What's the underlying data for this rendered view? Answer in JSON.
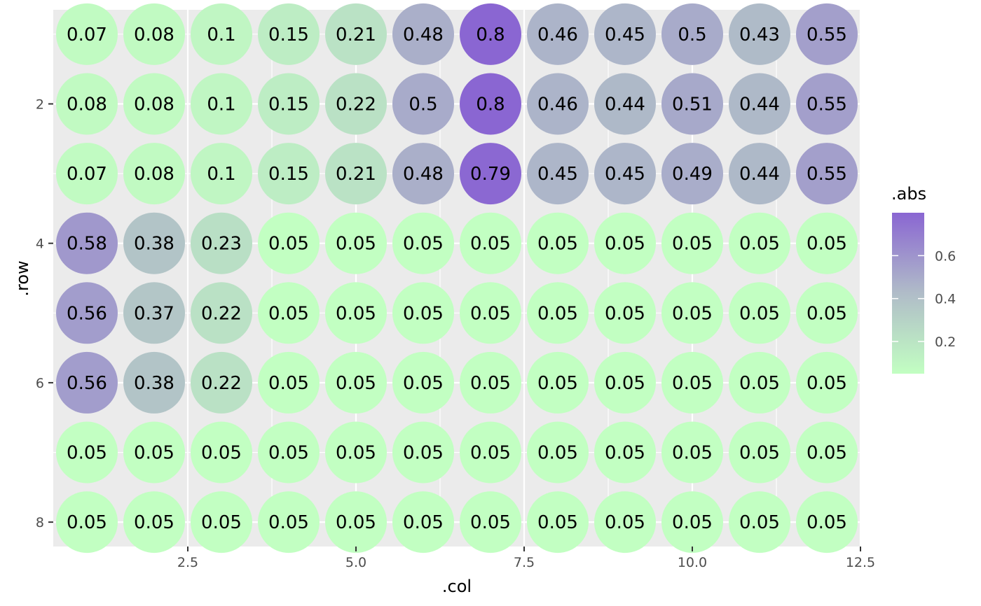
{
  "chart_data": {
    "type": "scatter",
    "xlabel": ".col",
    "ylabel": ".row",
    "xlim": [
      0.5,
      12.5
    ],
    "ylim": [
      8.35,
      0.65
    ],
    "x_ticks": [
      2.5,
      5.0,
      7.5,
      10.0,
      12.5
    ],
    "x_tick_labels": [
      "2.5",
      "5.0",
      "7.5",
      "10.0",
      "12.5"
    ],
    "y_ticks": [
      2,
      4,
      6,
      8
    ],
    "y_tick_labels": [
      "2",
      "4",
      "6",
      "8"
    ],
    "y_reversed": true,
    "grid": true,
    "legend": {
      "title": ".abs",
      "position": "right",
      "breaks": [
        0.2,
        0.4,
        0.6
      ],
      "break_labels": [
        "0.2",
        "0.4",
        "0.6"
      ],
      "min": 0.05,
      "max": 0.8,
      "low_color": "#c2ffc2",
      "mid_color": "#b0bcc8",
      "high_color": "#8a66d2"
    },
    "columns": [
      1,
      2,
      3,
      4,
      5,
      6,
      7,
      8,
      9,
      10,
      11,
      12
    ],
    "rows": [
      1,
      2,
      3,
      4,
      5,
      6,
      7,
      8
    ],
    "values": [
      [
        0.07,
        0.08,
        0.1,
        0.15,
        0.21,
        0.48,
        0.8,
        0.46,
        0.45,
        0.5,
        0.43,
        0.55
      ],
      [
        0.08,
        0.08,
        0.1,
        0.15,
        0.22,
        0.5,
        0.8,
        0.46,
        0.44,
        0.51,
        0.44,
        0.55
      ],
      [
        0.07,
        0.08,
        0.1,
        0.15,
        0.21,
        0.48,
        0.79,
        0.45,
        0.45,
        0.49,
        0.44,
        0.55
      ],
      [
        0.58,
        0.38,
        0.23,
        0.05,
        0.05,
        0.05,
        0.05,
        0.05,
        0.05,
        0.05,
        0.05,
        0.05
      ],
      [
        0.56,
        0.37,
        0.22,
        0.05,
        0.05,
        0.05,
        0.05,
        0.05,
        0.05,
        0.05,
        0.05,
        0.05
      ],
      [
        0.56,
        0.38,
        0.22,
        0.05,
        0.05,
        0.05,
        0.05,
        0.05,
        0.05,
        0.05,
        0.05,
        0.05
      ],
      [
        0.05,
        0.05,
        0.05,
        0.05,
        0.05,
        0.05,
        0.05,
        0.05,
        0.05,
        0.05,
        0.05,
        0.05
      ],
      [
        0.05,
        0.05,
        0.05,
        0.05,
        0.05,
        0.05,
        0.05,
        0.05,
        0.05,
        0.05,
        0.05,
        0.05
      ]
    ],
    "labels": [
      [
        "0.07",
        "0.08",
        "0.1",
        "0.15",
        "0.21",
        "0.48",
        "0.8",
        "0.46",
        "0.45",
        "0.5",
        "0.43",
        "0.55"
      ],
      [
        "0.08",
        "0.08",
        "0.1",
        "0.15",
        "0.22",
        "0.5",
        "0.8",
        "0.46",
        "0.44",
        "0.51",
        "0.44",
        "0.55"
      ],
      [
        "0.07",
        "0.08",
        "0.1",
        "0.15",
        "0.21",
        "0.48",
        "0.79",
        "0.45",
        "0.45",
        "0.49",
        "0.44",
        "0.55"
      ],
      [
        "0.58",
        "0.38",
        "0.23",
        "0.05",
        "0.05",
        "0.05",
        "0.05",
        "0.05",
        "0.05",
        "0.05",
        "0.05",
        "0.05"
      ],
      [
        "0.56",
        "0.37",
        "0.22",
        "0.05",
        "0.05",
        "0.05",
        "0.05",
        "0.05",
        "0.05",
        "0.05",
        "0.05",
        "0.05"
      ],
      [
        "0.56",
        "0.38",
        "0.22",
        "0.05",
        "0.05",
        "0.05",
        "0.05",
        "0.05",
        "0.05",
        "0.05",
        "0.05",
        "0.05"
      ],
      [
        "0.05",
        "0.05",
        "0.05",
        "0.05",
        "0.05",
        "0.05",
        "0.05",
        "0.05",
        "0.05",
        "0.05",
        "0.05",
        "0.05"
      ],
      [
        "0.05",
        "0.05",
        "0.05",
        "0.05",
        "0.05",
        "0.05",
        "0.05",
        "0.05",
        "0.05",
        "0.05",
        "0.05",
        "0.05"
      ]
    ],
    "panel_background": "#ebebeb",
    "grid_color": "#ffffff"
  }
}
